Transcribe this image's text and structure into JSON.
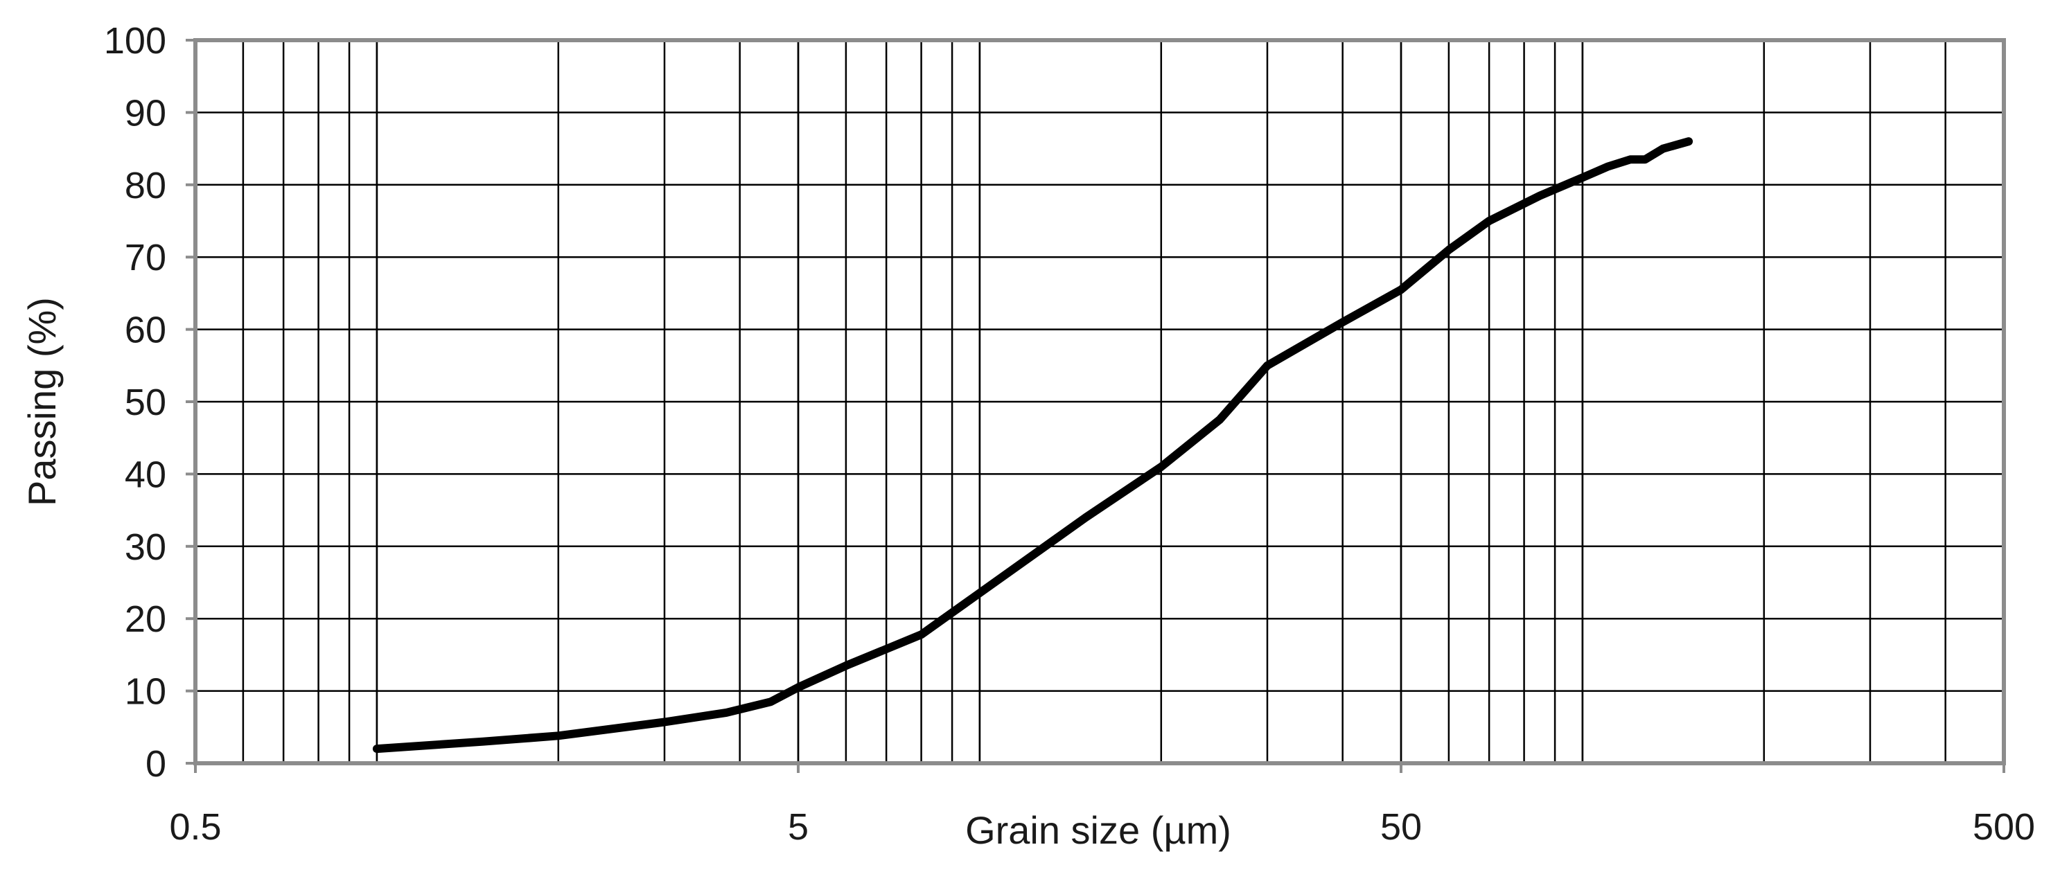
{
  "chart_data": {
    "type": "line",
    "title": "",
    "xlabel": "Grain size (µm)",
    "ylabel": "Passing (%)",
    "x_scale": "log",
    "xlim": [
      0.5,
      500
    ],
    "ylim": [
      0,
      100
    ],
    "x_ticks": [
      {
        "value": 0.5,
        "label": "0.5"
      },
      {
        "value": 5,
        "label": "5"
      },
      {
        "value": 50,
        "label": "50"
      },
      {
        "value": 500,
        "label": "500"
      }
    ],
    "y_ticks": [
      {
        "value": 0,
        "label": "0"
      },
      {
        "value": 10,
        "label": "10"
      },
      {
        "value": 20,
        "label": "20"
      },
      {
        "value": 30,
        "label": "30"
      },
      {
        "value": 40,
        "label": "40"
      },
      {
        "value": 50,
        "label": "50"
      },
      {
        "value": 60,
        "label": "60"
      },
      {
        "value": 70,
        "label": "70"
      },
      {
        "value": 80,
        "label": "80"
      },
      {
        "value": 90,
        "label": "90"
      },
      {
        "value": 100,
        "label": "100"
      }
    ],
    "grid": true,
    "legend": "none",
    "series": [
      {
        "color": "#000000",
        "x": [
          1.0,
          1.5,
          2.0,
          3.0,
          3.8,
          4.5,
          5.0,
          6.0,
          8.0,
          15.0,
          20.0,
          25.0,
          30.0,
          40.0,
          50.0,
          60.0,
          70.0,
          85.0,
          100.0,
          110.0,
          120.0,
          127.0,
          136.0,
          150.0
        ],
        "y": [
          2.0,
          3.0,
          3.8,
          5.7,
          7.0,
          8.5,
          10.5,
          13.5,
          17.8,
          34.0,
          41.0,
          47.5,
          55.0,
          61.0,
          65.5,
          71.0,
          75.0,
          78.5,
          81.0,
          82.5,
          83.5,
          83.5,
          85.0,
          86.0
        ]
      }
    ]
  }
}
